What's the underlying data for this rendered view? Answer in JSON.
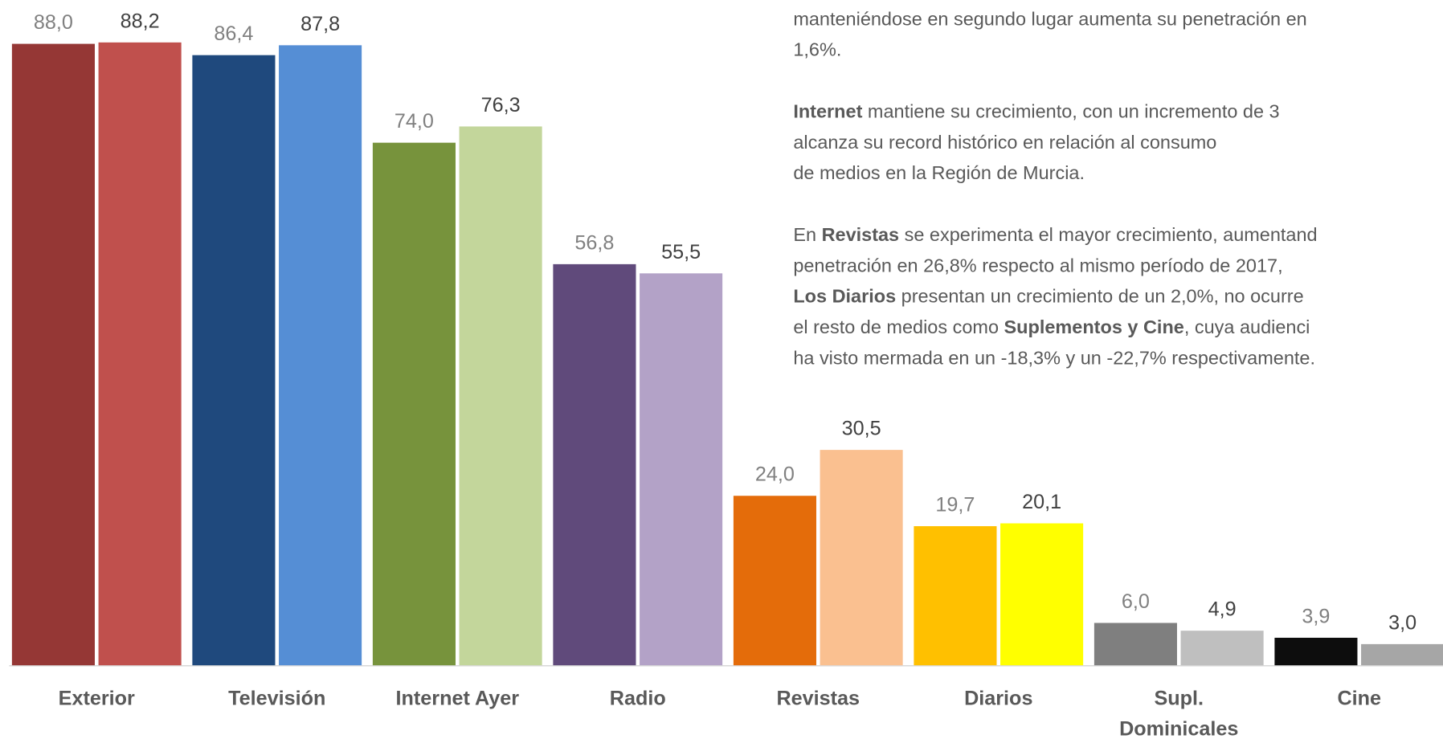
{
  "chart_data": {
    "type": "bar",
    "categories": [
      "Exterior",
      "Televisión",
      "Internet Ayer",
      "Radio",
      "Revistas",
      "Diarios",
      "Supl.\nDominicales",
      "Cine"
    ],
    "series": [
      {
        "colors": [
          "#953735",
          "#1f497d",
          "#77933c",
          "#604a7b",
          "#e46c0a",
          "#ffc000",
          "#7f7f7f",
          "#0d0d0d"
        ],
        "values": [
          88.0,
          86.4,
          74.0,
          56.8,
          24.0,
          19.7,
          6.0,
          3.9
        ],
        "value_labels": [
          "88,0",
          "86,4",
          "74,0",
          "56,8",
          "24,0",
          "19,7",
          "6,0",
          "3,9"
        ],
        "label_color": "#808080"
      },
      {
        "colors": [
          "#c0504d",
          "#558ed5",
          "#c3d69b",
          "#b3a2c7",
          "#fac090",
          "#ffff00",
          "#bfbfbf",
          "#a6a6a6"
        ],
        "values": [
          88.2,
          87.8,
          76.3,
          55.5,
          30.5,
          20.1,
          4.9,
          3.0
        ],
        "value_labels": [
          "88,2",
          "87,8",
          "76,3",
          "55,5",
          "30,5",
          "20,1",
          "4,9",
          "3,0"
        ],
        "label_color": "#404040"
      }
    ],
    "ylim": [
      0,
      90
    ]
  },
  "text_block": {
    "lines": [
      [
        {
          "text": "manteniéndose en segundo lugar aumenta su penetración en"
        }
      ],
      [
        {
          "text": "1,6%."
        }
      ],
      [],
      [
        {
          "text": "Internet",
          "bold": true
        },
        {
          "text": " mantiene su crecimiento, con un incremento de 3"
        }
      ],
      [
        {
          "text": "alcanza su record histórico en relación al consumo"
        }
      ],
      [
        {
          "text": "de medios en la Región de Murcia."
        }
      ],
      [],
      [
        {
          "text": "En "
        },
        {
          "text": "Revistas",
          "bold": true
        },
        {
          "text": " se experimenta el mayor crecimiento, aumentand"
        }
      ],
      [
        {
          "text": "penetración en 26,8% respecto al mismo período de 2017,"
        }
      ],
      [
        {
          "text": "Los Diarios",
          "bold": true
        },
        {
          "text": " presentan un crecimiento de un 2,0%, no ocurre"
        }
      ],
      [
        {
          "text": "el resto de medios como "
        },
        {
          "text": "Suplementos y Cine",
          "bold": true
        },
        {
          "text": ", cuya audienci"
        }
      ],
      [
        {
          "text": "ha visto mermada en un -18,3% y un -22,7% respectivamente."
        }
      ]
    ]
  }
}
